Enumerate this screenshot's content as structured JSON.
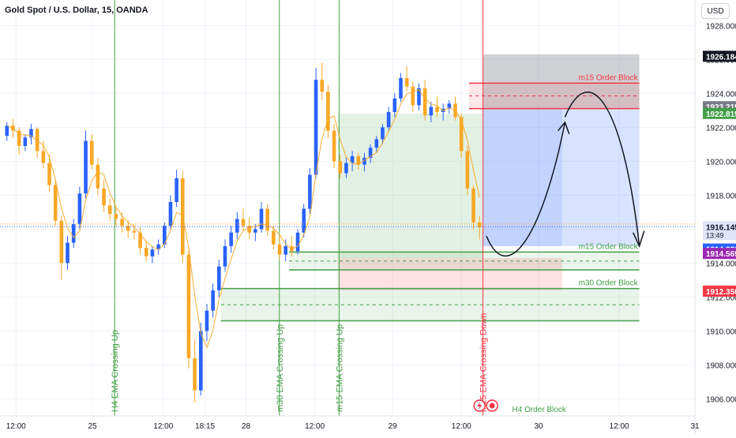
{
  "header": {
    "title": "Gold Spot / U.S. Dollar, 15, OANDA",
    "currency_label": "USD"
  },
  "chart_data": {
    "type": "candlestick",
    "yaxis": {
      "range": [
        1905.0,
        1929.5
      ],
      "ticks": [
        1906.0,
        1908.0,
        1910.0,
        1912.0,
        1914.0,
        1916.0,
        1918.0,
        1920.0,
        1922.0,
        1924.0,
        1926.0,
        1928.0
      ],
      "tick_labels": [
        "1906.000",
        "1908.000",
        "1910.000",
        "1912.000",
        "1914.000",
        "1916.000",
        "1918.000",
        "1920.000",
        "1922.000",
        "1924.000",
        "1926.000",
        "1928.000"
      ]
    },
    "xaxis": {
      "range": [
        0,
        100
      ],
      "ticks": [
        {
          "x": 2.3,
          "label": "12:00"
        },
        {
          "x": 13.3,
          "label": "25"
        },
        {
          "x": 23.5,
          "label": "12:00"
        },
        {
          "x": 29.5,
          "label": "18:15"
        },
        {
          "x": 35.4,
          "label": "28"
        },
        {
          "x": 45.3,
          "label": "12:00"
        },
        {
          "x": 56.5,
          "label": "29"
        },
        {
          "x": 66.4,
          "label": "12:00"
        },
        {
          "x": 77.5,
          "label": "30"
        },
        {
          "x": 89.1,
          "label": "12:00"
        },
        {
          "x": 100.0,
          "label": "31"
        }
      ]
    },
    "price_labels": [
      {
        "name": "target",
        "value": 1926.184,
        "text": "1926.184",
        "color": "#131722"
      },
      {
        "name": "ask",
        "value": 1923.215,
        "text": "1923.215",
        "color": "#787b86"
      },
      {
        "name": "entry",
        "value": 1922.815,
        "text": "1922.815",
        "color": "#43a047"
      },
      {
        "name": "last",
        "value": 1916.145,
        "text": "1916.145",
        "sub": "13:49",
        "color": "#dfe4fb",
        "text_color": "#131722"
      },
      {
        "name": "level-a",
        "value": 1914.83,
        "text": "1914.830",
        "color": "#2962ff"
      },
      {
        "name": "level-b",
        "value": 1914.569,
        "text": "1914.569",
        "color": "#9c27b0"
      },
      {
        "name": "stop",
        "value": 1912.35,
        "text": "1912.350",
        "color": "#f23645"
      }
    ],
    "vertical_lines": [
      {
        "x": 16.5,
        "label": "H4 EMA Crossing Up",
        "color": "#43a047"
      },
      {
        "x": 40.2,
        "label": "m30 EMA Crossing Up",
        "color": "#43a047"
      },
      {
        "x": 48.8,
        "label": "m15 EMA Crossing Up",
        "color": "#43a047"
      },
      {
        "x": 69.5,
        "label": "m15 EMA Crossing Down",
        "color": "#f23645"
      }
    ],
    "zones": [
      {
        "name": "m15 Order Block",
        "label": "m15 Order Block",
        "x0": 67.5,
        "x1": 92.0,
        "y_top": 1924.6,
        "y_bottom": 1923.1,
        "fill": "#f23645",
        "opacity": 0.12,
        "stroke": "#f23645",
        "label_color": "#f23645"
      },
      {
        "name": "m15 Order Block",
        "label": "m15 Order Block",
        "x0": 41.6,
        "x1": 92.0,
        "y_top": 1914.65,
        "y_bottom": 1913.6,
        "fill": "#43a047",
        "opacity": 0.1,
        "stroke": "#43a047",
        "label_color": "#43a047"
      },
      {
        "name": "m30 Order Block",
        "label": "m30 Order Block",
        "x0": 31.8,
        "x1": 92.0,
        "y_top": 1912.5,
        "y_bottom": 1910.6,
        "fill": "#43a047",
        "opacity": 0.12,
        "stroke": "#43a047",
        "label_color": "#43a047"
      }
    ],
    "position_boxes": [
      {
        "name": "profit-1",
        "x0": 48.6,
        "x1": 69.5,
        "y_top": 1922.8,
        "y_bottom": 1914.3,
        "fill": "#43a047",
        "opacity": 0.15
      },
      {
        "name": "loss-1",
        "x0": 48.6,
        "x1": 80.9,
        "y_top": 1914.3,
        "y_bottom": 1912.4,
        "fill": "#f23645",
        "opacity": 0.15
      },
      {
        "name": "upper-1",
        "x0": 69.5,
        "x1": 92.0,
        "y_top": 1926.3,
        "y_bottom": 1923.1,
        "fill": "#787b86",
        "opacity": 0.35
      },
      {
        "name": "profit-2",
        "x0": 69.5,
        "x1": 92.0,
        "y_top": 1923.1,
        "y_bottom": 1915.0,
        "fill": "#2962ff",
        "opacity": 0.18
      },
      {
        "name": "profit-3",
        "x0": 69.5,
        "x1": 80.9,
        "y_top": 1923.1,
        "y_bottom": 1915.0,
        "fill": "#2962ff",
        "opacity": 0.12
      }
    ],
    "candles": [
      [
        1921.5,
        1922.3,
        1921.2,
        1922.1
      ],
      [
        1922.1,
        1922.5,
        1921.4,
        1921.8
      ],
      [
        1921.8,
        1922.0,
        1920.4,
        1920.9
      ],
      [
        1920.9,
        1921.6,
        1920.6,
        1921.4
      ],
      [
        1921.4,
        1922.2,
        1921.0,
        1921.9
      ],
      [
        1921.9,
        1922.0,
        1920.2,
        1920.6
      ],
      [
        1920.6,
        1921.2,
        1919.6,
        1919.9
      ],
      [
        1919.9,
        1920.4,
        1918.2,
        1918.6
      ],
      [
        1918.6,
        1918.9,
        1916.2,
        1916.5
      ],
      [
        1916.5,
        1916.8,
        1913.0,
        1914.0
      ],
      [
        1914.0,
        1915.6,
        1913.6,
        1915.2
      ],
      [
        1915.2,
        1916.6,
        1914.9,
        1916.3
      ],
      [
        1916.3,
        1918.5,
        1916.0,
        1918.1
      ],
      [
        1918.1,
        1921.8,
        1917.8,
        1921.2
      ],
      [
        1921.2,
        1921.6,
        1919.5,
        1919.8
      ],
      [
        1919.8,
        1920.2,
        1918.0,
        1918.4
      ],
      [
        1918.4,
        1918.9,
        1917.0,
        1917.4
      ],
      [
        1917.4,
        1917.8,
        1916.5,
        1916.9
      ],
      [
        1916.9,
        1917.3,
        1916.2,
        1916.6
      ],
      [
        1916.6,
        1917.0,
        1915.8,
        1916.2
      ],
      [
        1916.2,
        1916.5,
        1915.5,
        1915.9
      ],
      [
        1915.9,
        1916.3,
        1915.4,
        1915.8
      ],
      [
        1915.8,
        1916.1,
        1914.5,
        1914.9
      ],
      [
        1914.9,
        1915.3,
        1914.1,
        1914.4
      ],
      [
        1914.4,
        1915.0,
        1914.0,
        1914.8
      ],
      [
        1914.8,
        1915.4,
        1914.5,
        1915.1
      ],
      [
        1915.1,
        1916.4,
        1914.9,
        1916.2
      ],
      [
        1916.2,
        1918.0,
        1916.0,
        1917.6
      ],
      [
        1917.6,
        1919.5,
        1917.3,
        1919.0
      ],
      [
        1919.0,
        1919.4,
        1914.0,
        1914.5
      ],
      [
        1914.5,
        1914.8,
        1907.8,
        1908.4
      ],
      [
        1908.4,
        1909.5,
        1905.8,
        1906.5
      ],
      [
        1906.5,
        1910.5,
        1906.2,
        1910.0
      ],
      [
        1910.0,
        1911.6,
        1909.4,
        1911.2
      ],
      [
        1911.2,
        1912.8,
        1910.8,
        1912.4
      ],
      [
        1912.4,
        1914.2,
        1912.0,
        1913.8
      ],
      [
        1913.8,
        1915.4,
        1913.5,
        1915.0
      ],
      [
        1915.0,
        1916.2,
        1914.6,
        1915.8
      ],
      [
        1915.8,
        1917.0,
        1915.4,
        1916.6
      ],
      [
        1916.6,
        1917.2,
        1915.9,
        1916.2
      ],
      [
        1916.2,
        1916.7,
        1915.4,
        1915.8
      ],
      [
        1915.8,
        1916.3,
        1915.3,
        1916.0
      ],
      [
        1916.0,
        1917.6,
        1915.8,
        1917.2
      ],
      [
        1917.2,
        1917.5,
        1915.6,
        1915.9
      ],
      [
        1915.9,
        1916.2,
        1914.8,
        1915.1
      ],
      [
        1915.1,
        1915.6,
        1914.2,
        1914.5
      ],
      [
        1914.5,
        1915.4,
        1914.1,
        1915.0
      ],
      [
        1915.0,
        1915.6,
        1914.4,
        1914.7
      ],
      [
        1914.7,
        1916.0,
        1914.5,
        1915.8
      ],
      [
        1915.8,
        1917.5,
        1915.5,
        1917.2
      ],
      [
        1917.2,
        1919.6,
        1916.9,
        1919.2
      ],
      [
        1919.2,
        1925.5,
        1919.0,
        1924.8
      ],
      [
        1924.8,
        1925.8,
        1923.6,
        1924.1
      ],
      [
        1924.1,
        1924.5,
        1921.4,
        1921.8
      ],
      [
        1921.8,
        1922.2,
        1919.6,
        1920.0
      ],
      [
        1920.0,
        1920.4,
        1919.0,
        1919.3
      ],
      [
        1919.3,
        1920.2,
        1919.0,
        1919.9
      ],
      [
        1919.9,
        1920.6,
        1919.4,
        1920.3
      ],
      [
        1920.3,
        1920.5,
        1919.5,
        1919.8
      ],
      [
        1919.8,
        1920.5,
        1919.4,
        1920.2
      ],
      [
        1920.2,
        1921.0,
        1919.9,
        1920.8
      ],
      [
        1920.8,
        1921.5,
        1920.5,
        1921.3
      ],
      [
        1921.3,
        1922.2,
        1921.0,
        1922.0
      ],
      [
        1922.0,
        1923.2,
        1921.8,
        1922.9
      ],
      [
        1922.9,
        1924.0,
        1922.6,
        1923.7
      ],
      [
        1923.7,
        1925.2,
        1923.5,
        1924.9
      ],
      [
        1924.9,
        1925.6,
        1924.1,
        1924.4
      ],
      [
        1924.4,
        1924.7,
        1922.9,
        1923.3
      ],
      [
        1923.3,
        1924.6,
        1923.0,
        1924.3
      ],
      [
        1924.3,
        1924.8,
        1922.4,
        1922.7
      ],
      [
        1922.7,
        1923.5,
        1922.3,
        1923.2
      ],
      [
        1923.2,
        1923.8,
        1922.6,
        1922.9
      ],
      [
        1922.9,
        1923.4,
        1922.4,
        1923.1
      ],
      [
        1923.1,
        1923.6,
        1922.8,
        1923.4
      ],
      [
        1923.4,
        1923.8,
        1922.4,
        1922.6
      ],
      [
        1922.6,
        1922.8,
        1920.2,
        1920.6
      ],
      [
        1920.6,
        1920.9,
        1918.0,
        1918.4
      ],
      [
        1918.4,
        1918.6,
        1916.0,
        1916.4
      ],
      [
        1916.4,
        1916.8,
        1915.4,
        1916.1
      ]
    ]
  },
  "footer": {
    "order_block_label": "H4 Order Block"
  }
}
